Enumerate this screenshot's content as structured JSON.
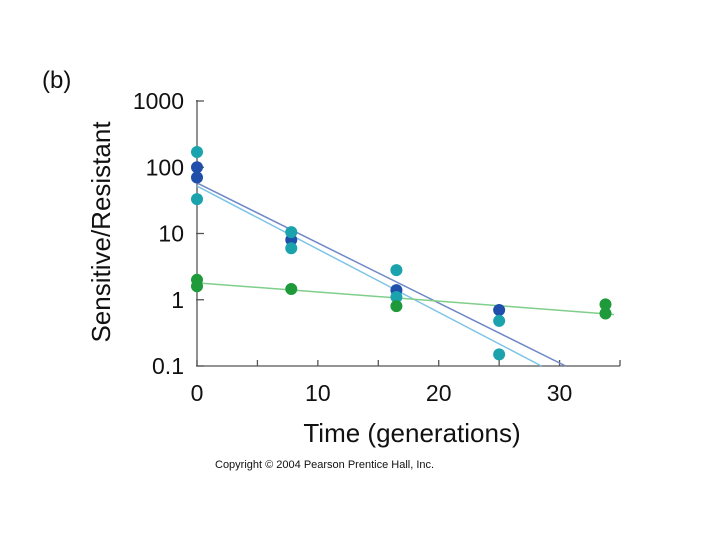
{
  "chart_data": {
    "type": "scatter",
    "panel_label": "(b)",
    "title": "",
    "xlabel": "Time (generations)",
    "ylabel": "Sensitive/Resistant",
    "y_scale": "log",
    "xlim": [
      0,
      35
    ],
    "ylim": [
      0.1,
      1000
    ],
    "x_tick_labels": [
      "0",
      "10",
      "20",
      "30"
    ],
    "x_tick_values": [
      0,
      10,
      20,
      30
    ],
    "x_minor_ticks": [
      5,
      15,
      25,
      35
    ],
    "y_tick_labels": [
      "1000",
      "100",
      "10",
      "1",
      "0.1"
    ],
    "y_tick_values": [
      1000,
      100,
      10,
      1,
      0.1
    ],
    "series": [
      {
        "name": "dark blue",
        "color": "#1f4faa",
        "points": [
          [
            0,
            100
          ],
          [
            0,
            70
          ],
          [
            7.8,
            8
          ],
          [
            16.5,
            1.4
          ],
          [
            25,
            0.7
          ]
        ],
        "trend": {
          "from": [
            0,
            58
          ],
          "to": [
            30.5,
            0.1
          ]
        }
      },
      {
        "name": "teal",
        "color": "#1aa3ad",
        "points": [
          [
            0,
            170
          ],
          [
            0,
            33
          ],
          [
            7.8,
            10.5
          ],
          [
            7.8,
            6
          ],
          [
            16.5,
            2.8
          ],
          [
            16.5,
            1.1
          ],
          [
            25,
            0.48
          ],
          [
            25,
            0.15
          ]
        ],
        "trend": {
          "from": [
            0,
            52
          ],
          "to": [
            28.5,
            0.1
          ]
        }
      },
      {
        "name": "green",
        "color": "#1e9a3a",
        "points": [
          [
            0,
            2.0
          ],
          [
            0,
            1.6
          ],
          [
            7.8,
            1.45
          ],
          [
            16.5,
            0.8
          ],
          [
            33.8,
            0.85
          ],
          [
            33.8,
            0.62
          ]
        ],
        "trend": {
          "from": [
            0,
            1.8
          ],
          "to": [
            34.5,
            0.6
          ]
        }
      }
    ]
  },
  "footer": {
    "copyright": "Copyright © 2004 Pearson Prentice Hall, Inc."
  }
}
